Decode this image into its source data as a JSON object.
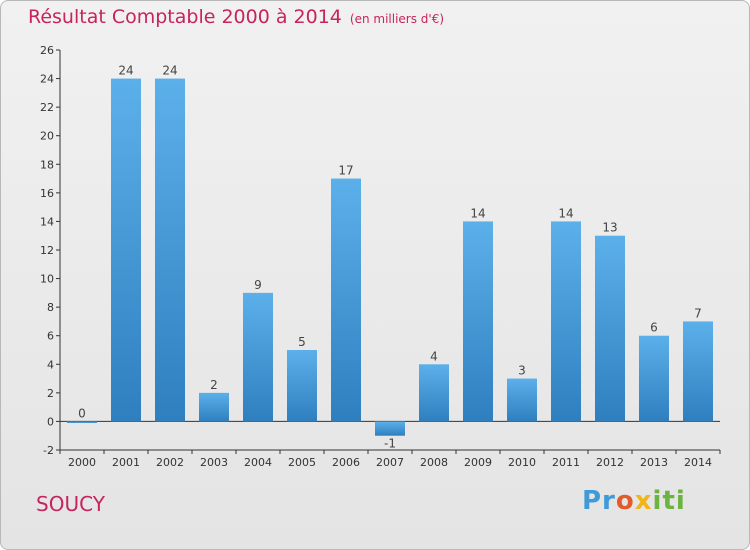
{
  "chart_data": {
    "type": "bar",
    "title": "Résultat Comptable 2000 à 2014",
    "subtitle": "(en milliers d'€)",
    "categories": [
      "2000",
      "2001",
      "2002",
      "2003",
      "2004",
      "2005",
      "2006",
      "2007",
      "2008",
      "2009",
      "2010",
      "2011",
      "2012",
      "2013",
      "2014"
    ],
    "values": [
      0,
      24,
      24,
      2,
      9,
      5,
      17,
      -1,
      4,
      14,
      3,
      14,
      13,
      6,
      7
    ],
    "ylim": [
      -2,
      26
    ],
    "yticks": [
      -2,
      0,
      2,
      4,
      6,
      8,
      10,
      12,
      14,
      16,
      18,
      20,
      22,
      24,
      26
    ],
    "xlabel": "",
    "ylabel": "",
    "grid": false,
    "bar_color": "#4c9fdc"
  },
  "city": "SOUCY",
  "logo": {
    "p1": "Pr",
    "p2": "o",
    "p3": "x",
    "p4": "iti"
  }
}
